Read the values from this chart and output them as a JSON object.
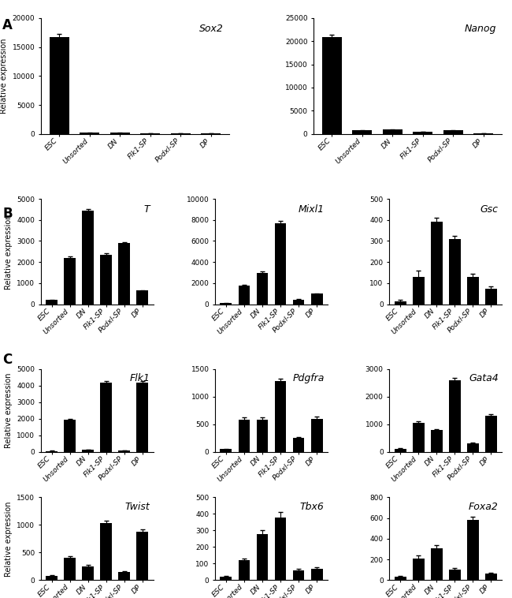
{
  "categories": [
    "ESC",
    "Unsorted",
    "DN",
    "Flk1-SP",
    "Podxl-SP",
    "DP"
  ],
  "panel_A": {
    "Sox2": {
      "values": [
        16700,
        200,
        200,
        50,
        80,
        50
      ],
      "errors": [
        500,
        30,
        30,
        10,
        10,
        10
      ],
      "ylim": [
        0,
        20000
      ],
      "yticks": [
        0,
        5000,
        10000,
        15000,
        20000
      ]
    },
    "Nanog": {
      "values": [
        20800,
        750,
        900,
        480,
        750,
        130
      ],
      "errors": [
        600,
        50,
        60,
        30,
        40,
        10
      ],
      "ylim": [
        0,
        25000
      ],
      "yticks": [
        0,
        5000,
        10000,
        15000,
        20000,
        25000
      ]
    }
  },
  "panel_B": {
    "T": {
      "values": [
        200,
        2200,
        4450,
        2350,
        2900,
        650
      ],
      "errors": [
        30,
        80,
        80,
        60,
        60,
        30
      ],
      "ylim": [
        0,
        5000
      ],
      "yticks": [
        0,
        1000,
        2000,
        3000,
        4000,
        5000
      ]
    },
    "Mixl1": {
      "values": [
        100,
        1800,
        3000,
        7700,
        450,
        1000
      ],
      "errors": [
        20,
        80,
        100,
        200,
        40,
        60
      ],
      "ylim": [
        0,
        10000
      ],
      "yticks": [
        0,
        2000,
        4000,
        6000,
        8000,
        10000
      ]
    },
    "Gsc": {
      "values": [
        15,
        130,
        390,
        310,
        130,
        75
      ],
      "errors": [
        5,
        30,
        20,
        15,
        15,
        8
      ],
      "ylim": [
        0,
        500
      ],
      "yticks": [
        0,
        100,
        200,
        300,
        400,
        500
      ]
    }
  },
  "panel_C": {
    "Flk1": {
      "values": [
        50,
        1950,
        130,
        4200,
        80,
        4200
      ],
      "errors": [
        10,
        60,
        20,
        100,
        10,
        80
      ],
      "ylim": [
        0,
        5000
      ],
      "yticks": [
        0,
        1000,
        2000,
        3000,
        4000,
        5000
      ]
    },
    "Pdgfra": {
      "values": [
        50,
        580,
        580,
        1280,
        250,
        600
      ],
      "errors": [
        10,
        40,
        40,
        50,
        20,
        40
      ],
      "ylim": [
        0,
        1500
      ],
      "yticks": [
        0,
        500,
        1000,
        1500
      ]
    },
    "Gata4": {
      "values": [
        120,
        1050,
        780,
        2600,
        320,
        1300
      ],
      "errors": [
        15,
        50,
        40,
        80,
        25,
        60
      ],
      "ylim": [
        0,
        3000
      ],
      "yticks": [
        0,
        1000,
        2000,
        3000
      ]
    },
    "Twist": {
      "values": [
        80,
        400,
        250,
        1040,
        150,
        880
      ],
      "errors": [
        15,
        30,
        20,
        40,
        15,
        40
      ],
      "ylim": [
        0,
        1500
      ],
      "yticks": [
        0,
        500,
        1000,
        1500
      ]
    },
    "Tbx6": {
      "values": [
        20,
        120,
        280,
        380,
        60,
        70
      ],
      "errors": [
        5,
        10,
        20,
        30,
        8,
        8
      ],
      "ylim": [
        0,
        500
      ],
      "yticks": [
        0,
        100,
        200,
        300,
        400,
        500
      ]
    },
    "Foxa2": {
      "values": [
        30,
        210,
        310,
        100,
        580,
        60
      ],
      "errors": [
        8,
        30,
        25,
        15,
        30,
        8
      ],
      "ylim": [
        0,
        800
      ],
      "yticks": [
        0,
        200,
        400,
        600,
        800
      ]
    }
  },
  "bar_color": "#000000",
  "ylabel": "Relative expression",
  "label_fontsize": 7,
  "tick_fontsize": 6.5,
  "title_fontsize": 9
}
